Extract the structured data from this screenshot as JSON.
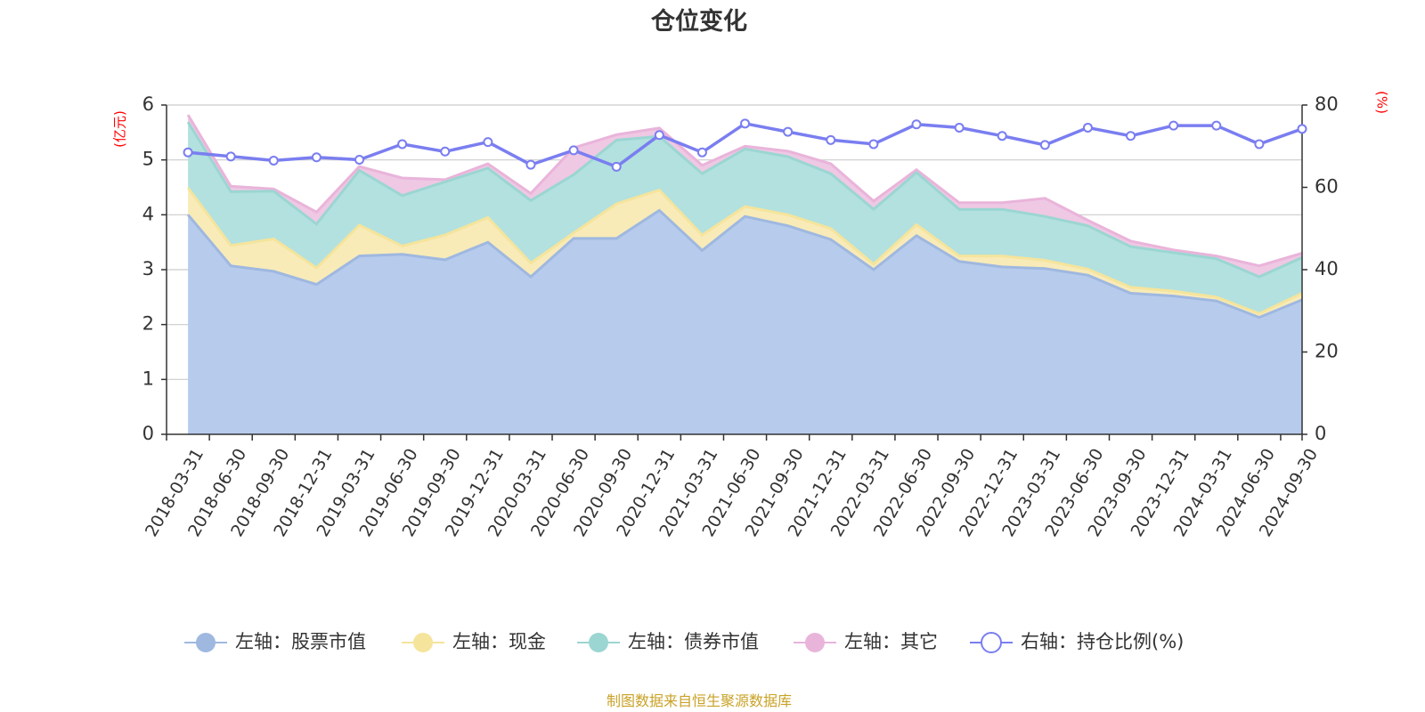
{
  "chart_data": {
    "type": "area",
    "title": "仓位变化",
    "left_axis": {
      "unit": "(亿元)",
      "min": 0,
      "max": 6,
      "ticks": [
        0,
        1,
        2,
        3,
        4,
        5,
        6
      ]
    },
    "right_axis": {
      "unit": "(%)",
      "min": 0,
      "max": 80,
      "ticks": [
        0,
        20,
        40,
        60,
        80
      ]
    },
    "categories": [
      "2018-03-31",
      "2018-06-30",
      "2018-09-30",
      "2018-12-31",
      "2019-03-31",
      "2019-06-30",
      "2019-09-30",
      "2019-12-31",
      "2020-03-31",
      "2020-06-30",
      "2020-09-30",
      "2020-12-31",
      "2021-03-31",
      "2021-06-30",
      "2021-09-30",
      "2021-12-31",
      "2022-03-31",
      "2022-06-30",
      "2022-09-30",
      "2022-12-31",
      "2023-03-31",
      "2023-06-30",
      "2023-09-30",
      "2023-12-31",
      "2024-03-31",
      "2024-06-30",
      "2024-09-30"
    ],
    "grid": true,
    "legend_position": "bottom",
    "series": [
      {
        "name": "左轴：股票市值",
        "axis": "left",
        "stacked": true,
        "color": "#9fb8e0",
        "fill": "#b7cbec",
        "values": [
          4.0,
          3.07,
          2.97,
          2.73,
          3.25,
          3.28,
          3.18,
          3.5,
          2.87,
          3.57,
          3.57,
          4.08,
          3.35,
          3.97,
          3.8,
          3.55,
          3.0,
          3.62,
          3.15,
          3.05,
          3.02,
          2.9,
          2.57,
          2.52,
          2.43,
          2.13,
          2.45
        ]
      },
      {
        "name": "左轴：现金",
        "axis": "left",
        "stacked": true,
        "color": "#f5e49c",
        "fill": "#f8ebb8",
        "values": [
          0.49,
          0.37,
          0.59,
          0.3,
          0.56,
          0.15,
          0.45,
          0.45,
          0.25,
          0.1,
          0.63,
          0.37,
          0.28,
          0.18,
          0.2,
          0.2,
          0.1,
          0.2,
          0.1,
          0.2,
          0.15,
          0.11,
          0.11,
          0.09,
          0.07,
          0.07,
          0.12
        ]
      },
      {
        "name": "左轴：债券市值",
        "axis": "left",
        "stacked": true,
        "color": "#9bd6d2",
        "fill": "#b2e1df",
        "values": [
          1.2,
          0.98,
          0.87,
          0.8,
          1.0,
          0.92,
          0.97,
          0.9,
          1.14,
          1.06,
          1.16,
          0.98,
          1.12,
          1.05,
          1.06,
          1.0,
          1.0,
          0.95,
          0.85,
          0.85,
          0.8,
          0.79,
          0.74,
          0.7,
          0.7,
          0.67,
          0.65
        ]
      },
      {
        "name": "左轴：其它",
        "axis": "left",
        "stacked": true,
        "color": "#e9b4da",
        "fill": "#efc8e4",
        "values": [
          0.13,
          0.1,
          0.04,
          0.22,
          0.07,
          0.32,
          0.04,
          0.08,
          0.13,
          0.49,
          0.1,
          0.15,
          0.15,
          0.05,
          0.1,
          0.18,
          0.15,
          0.05,
          0.12,
          0.12,
          0.33,
          0.1,
          0.1,
          0.05,
          0.05,
          0.2,
          0.08
        ]
      },
      {
        "name": "右轴：持仓比例(%)",
        "axis": "right",
        "type": "line",
        "color": "#7a7ef0",
        "values": [
          68.5,
          67.5,
          66.5,
          67.3,
          66.7,
          70.5,
          68.7,
          71.0,
          65.5,
          69.0,
          65.0,
          72.7,
          68.5,
          75.5,
          73.5,
          71.5,
          70.5,
          75.3,
          74.5,
          72.5,
          70.3,
          74.5,
          72.5,
          75.0,
          75.0,
          70.5,
          74.2
        ]
      }
    ]
  },
  "footer": {
    "source": "制图数据来自恒生聚源数据库"
  }
}
